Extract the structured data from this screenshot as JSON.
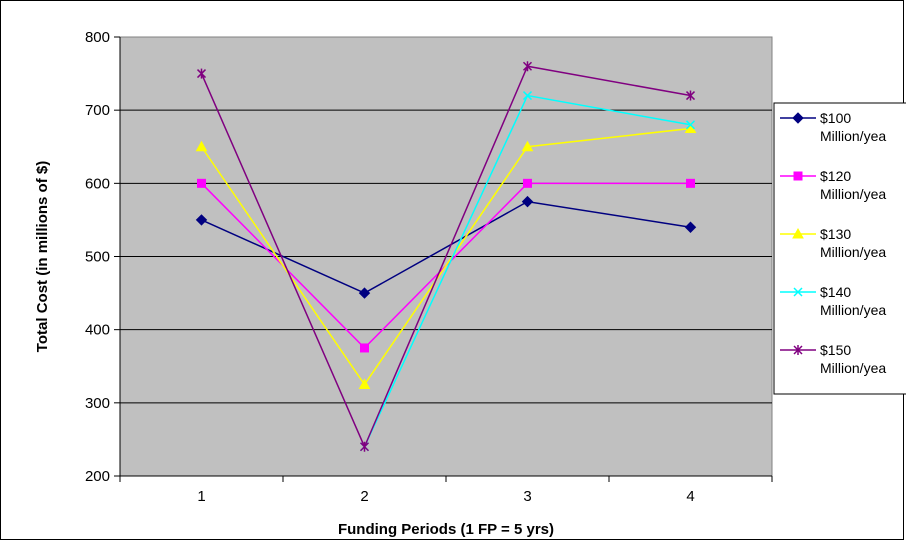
{
  "chart_data": {
    "type": "line",
    "title": "",
    "xlabel": "Funding Periods (1 FP = 5 yrs)",
    "ylabel": "Total Cost (in millions of $)",
    "categories": [
      "1",
      "2",
      "3",
      "4"
    ],
    "ylim": [
      200,
      800
    ],
    "yticks": [
      "200",
      "300",
      "400",
      "500",
      "600",
      "700",
      "800"
    ],
    "grid": true,
    "legend_position": "right",
    "plot_background": "#c0c0c0",
    "series": [
      {
        "name_line1": "$100",
        "name_line2": "Million/yea",
        "values": [
          550,
          450,
          575,
          540
        ],
        "color": "#000080",
        "marker": "diamond"
      },
      {
        "name_line1": "$120",
        "name_line2": "Million/yea",
        "values": [
          600,
          375,
          600,
          600
        ],
        "color": "#ff00ff",
        "marker": "square"
      },
      {
        "name_line1": "$130",
        "name_line2": "Million/yea",
        "values": [
          650,
          325,
          650,
          675
        ],
        "color": "#ffff00",
        "marker": "triangle"
      },
      {
        "name_line1": "$140",
        "name_line2": "Million/yea",
        "values": [
          null,
          240,
          720,
          680
        ],
        "color": "#00ffff",
        "marker": "x"
      },
      {
        "name_line1": "$150",
        "name_line2": "Million/yea",
        "values": [
          750,
          240,
          760,
          720
        ],
        "color": "#800080",
        "marker": "star"
      }
    ]
  }
}
